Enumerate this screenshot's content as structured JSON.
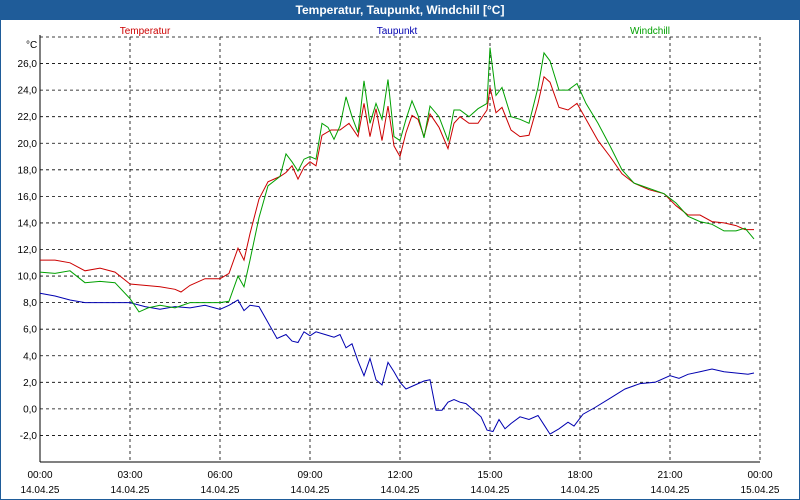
{
  "window": {
    "title": "Temperatur, Taupunkt, Windchill [°C]"
  },
  "chart_data": {
    "type": "line",
    "title": "Temperatur, Taupunkt, Windchill [°C]",
    "yunit": "°C",
    "ylim": [
      -4,
      28
    ],
    "yticks": [
      {
        "v": 26,
        "l": "26,0"
      },
      {
        "v": 24,
        "l": "24,0"
      },
      {
        "v": 22,
        "l": "22,0"
      },
      {
        "v": 20,
        "l": "20,0"
      },
      {
        "v": 18,
        "l": "18,0"
      },
      {
        "v": 16,
        "l": "16,0"
      },
      {
        "v": 14,
        "l": "14,0"
      },
      {
        "v": 12,
        "l": "12,0"
      },
      {
        "v": 10,
        "l": "10,0"
      },
      {
        "v": 8,
        "l": "8,0"
      },
      {
        "v": 6,
        "l": "6,0"
      },
      {
        "v": 4,
        "l": "4,0"
      },
      {
        "v": 2,
        "l": "2,0"
      },
      {
        "v": 0,
        "l": "0,0"
      },
      {
        "v": -2,
        "l": "-2,0"
      }
    ],
    "xlim": [
      0,
      24
    ],
    "xticks": [
      {
        "v": 0,
        "time": "00:00",
        "date": "14.04.25"
      },
      {
        "v": 3,
        "time": "03:00",
        "date": "14.04.25"
      },
      {
        "v": 6,
        "time": "06:00",
        "date": "14.04.25"
      },
      {
        "v": 9,
        "time": "09:00",
        "date": "14.04.25"
      },
      {
        "v": 12,
        "time": "12:00",
        "date": "14.04.25"
      },
      {
        "v": 15,
        "time": "15:00",
        "date": "14.04.25"
      },
      {
        "v": 18,
        "time": "18:00",
        "date": "14.04.25"
      },
      {
        "v": 21,
        "time": "21:00",
        "date": "14.04.25"
      },
      {
        "v": 24,
        "time": "00:00",
        "date": "15.04.25"
      }
    ],
    "grid": true,
    "legend_placement": "top",
    "series": [
      {
        "name": "Temperatur",
        "color": "#cc0000",
        "points": [
          [
            0,
            11.2
          ],
          [
            0.5,
            11.2
          ],
          [
            1,
            11.0
          ],
          [
            1.5,
            10.4
          ],
          [
            2,
            10.6
          ],
          [
            2.5,
            10.3
          ],
          [
            3,
            9.4
          ],
          [
            3.5,
            9.3
          ],
          [
            4,
            9.2
          ],
          [
            4.5,
            9.0
          ],
          [
            4.7,
            8.8
          ],
          [
            5,
            9.3
          ],
          [
            5.5,
            9.8
          ],
          [
            6,
            9.8
          ],
          [
            6.3,
            10.2
          ],
          [
            6.6,
            12.1
          ],
          [
            6.8,
            11.2
          ],
          [
            7,
            13.2
          ],
          [
            7.3,
            15.8
          ],
          [
            7.6,
            17.1
          ],
          [
            8,
            17.5
          ],
          [
            8.2,
            17.8
          ],
          [
            8.4,
            18.3
          ],
          [
            8.6,
            17.3
          ],
          [
            8.8,
            18.2
          ],
          [
            9.0,
            18.6
          ],
          [
            9.2,
            18.3
          ],
          [
            9.4,
            20.6
          ],
          [
            9.7,
            21.0
          ],
          [
            10.0,
            21.0
          ],
          [
            10.3,
            21.5
          ],
          [
            10.6,
            20.5
          ],
          [
            10.8,
            23.0
          ],
          [
            11.0,
            20.5
          ],
          [
            11.2,
            22.6
          ],
          [
            11.4,
            20.2
          ],
          [
            11.6,
            22.8
          ],
          [
            11.8,
            19.8
          ],
          [
            12.0,
            19.0
          ],
          [
            12.2,
            20.8
          ],
          [
            12.4,
            22.1
          ],
          [
            12.6,
            21.8
          ],
          [
            12.8,
            20.5
          ],
          [
            13.0,
            22.2
          ],
          [
            13.3,
            21.2
          ],
          [
            13.6,
            19.6
          ],
          [
            13.8,
            21.5
          ],
          [
            14.0,
            22.0
          ],
          [
            14.3,
            21.5
          ],
          [
            14.6,
            21.5
          ],
          [
            14.9,
            22.5
          ],
          [
            15.0,
            24.2
          ],
          [
            15.2,
            22.3
          ],
          [
            15.4,
            22.7
          ],
          [
            15.7,
            21.0
          ],
          [
            16.0,
            20.5
          ],
          [
            16.3,
            20.6
          ],
          [
            16.6,
            23.0
          ],
          [
            16.8,
            25.0
          ],
          [
            17.0,
            24.6
          ],
          [
            17.3,
            22.7
          ],
          [
            17.6,
            22.5
          ],
          [
            17.9,
            23.0
          ],
          [
            18.2,
            21.8
          ],
          [
            18.6,
            20.2
          ],
          [
            19.0,
            19.0
          ],
          [
            19.4,
            17.7
          ],
          [
            19.8,
            17.0
          ],
          [
            20.3,
            16.5
          ],
          [
            20.8,
            16.2
          ],
          [
            21.2,
            15.3
          ],
          [
            21.6,
            14.6
          ],
          [
            22.0,
            14.6
          ],
          [
            22.4,
            14.1
          ],
          [
            22.8,
            14.0
          ],
          [
            23.2,
            13.8
          ],
          [
            23.5,
            13.5
          ],
          [
            23.8,
            13.5
          ]
        ]
      },
      {
        "name": "Taupunkt",
        "color": "#0000b0",
        "points": [
          [
            0,
            8.7
          ],
          [
            0.5,
            8.5
          ],
          [
            1,
            8.2
          ],
          [
            1.5,
            8.0
          ],
          [
            2,
            8.0
          ],
          [
            2.5,
            8.0
          ],
          [
            3,
            8.0
          ],
          [
            3.5,
            7.7
          ],
          [
            4,
            7.5
          ],
          [
            4.5,
            7.7
          ],
          [
            5,
            7.6
          ],
          [
            5.5,
            7.8
          ],
          [
            6,
            7.5
          ],
          [
            6.3,
            7.8
          ],
          [
            6.6,
            8.2
          ],
          [
            6.8,
            7.4
          ],
          [
            7.0,
            7.8
          ],
          [
            7.3,
            7.7
          ],
          [
            7.6,
            6.5
          ],
          [
            7.9,
            5.3
          ],
          [
            8.2,
            5.6
          ],
          [
            8.4,
            5.1
          ],
          [
            8.6,
            5.0
          ],
          [
            8.8,
            5.8
          ],
          [
            9.0,
            5.5
          ],
          [
            9.2,
            5.8
          ],
          [
            9.5,
            5.6
          ],
          [
            9.8,
            5.4
          ],
          [
            10.0,
            5.6
          ],
          [
            10.2,
            4.6
          ],
          [
            10.4,
            4.9
          ],
          [
            10.6,
            3.6
          ],
          [
            10.8,
            2.5
          ],
          [
            11.0,
            3.8
          ],
          [
            11.2,
            2.2
          ],
          [
            11.4,
            1.8
          ],
          [
            11.6,
            3.5
          ],
          [
            11.8,
            2.8
          ],
          [
            12.0,
            2.0
          ],
          [
            12.2,
            1.5
          ],
          [
            12.5,
            1.8
          ],
          [
            12.8,
            2.1
          ],
          [
            13.0,
            2.2
          ],
          [
            13.2,
            -0.1
          ],
          [
            13.4,
            -0.1
          ],
          [
            13.6,
            0.5
          ],
          [
            13.8,
            0.7
          ],
          [
            14.0,
            0.5
          ],
          [
            14.2,
            0.4
          ],
          [
            14.5,
            -0.2
          ],
          [
            14.7,
            -0.6
          ],
          [
            14.9,
            -1.6
          ],
          [
            15.1,
            -1.7
          ],
          [
            15.3,
            -0.8
          ],
          [
            15.5,
            -1.5
          ],
          [
            15.7,
            -1.1
          ],
          [
            16.0,
            -0.6
          ],
          [
            16.3,
            -0.8
          ],
          [
            16.6,
            -0.5
          ],
          [
            16.8,
            -1.2
          ],
          [
            17.0,
            -1.9
          ],
          [
            17.3,
            -1.5
          ],
          [
            17.6,
            -1.0
          ],
          [
            17.8,
            -1.3
          ],
          [
            18.1,
            -0.4
          ],
          [
            18.5,
            0.1
          ],
          [
            19.0,
            0.8
          ],
          [
            19.5,
            1.5
          ],
          [
            20.0,
            1.9
          ],
          [
            20.5,
            2.0
          ],
          [
            21.0,
            2.5
          ],
          [
            21.3,
            2.3
          ],
          [
            21.6,
            2.6
          ],
          [
            22.0,
            2.8
          ],
          [
            22.4,
            3.0
          ],
          [
            22.8,
            2.8
          ],
          [
            23.2,
            2.7
          ],
          [
            23.6,
            2.6
          ],
          [
            23.8,
            2.7
          ]
        ]
      },
      {
        "name": "Windchill",
        "color": "#00a000",
        "points": [
          [
            0,
            10.3
          ],
          [
            0.5,
            10.2
          ],
          [
            1,
            10.4
          ],
          [
            1.5,
            9.5
          ],
          [
            2,
            9.6
          ],
          [
            2.5,
            9.5
          ],
          [
            3,
            8.3
          ],
          [
            3.3,
            7.3
          ],
          [
            3.6,
            7.6
          ],
          [
            4.0,
            7.8
          ],
          [
            4.5,
            7.6
          ],
          [
            5,
            8.0
          ],
          [
            5.5,
            8.0
          ],
          [
            6,
            8.0
          ],
          [
            6.3,
            8.1
          ],
          [
            6.6,
            10.0
          ],
          [
            6.8,
            9.2
          ],
          [
            7,
            11.2
          ],
          [
            7.3,
            14.4
          ],
          [
            7.6,
            16.8
          ],
          [
            8.0,
            17.5
          ],
          [
            8.2,
            19.2
          ],
          [
            8.4,
            18.6
          ],
          [
            8.6,
            17.9
          ],
          [
            8.8,
            18.8
          ],
          [
            9.0,
            19.0
          ],
          [
            9.2,
            18.8
          ],
          [
            9.4,
            21.5
          ],
          [
            9.6,
            21.2
          ],
          [
            9.8,
            20.3
          ],
          [
            10.0,
            21.3
          ],
          [
            10.2,
            23.5
          ],
          [
            10.4,
            22.0
          ],
          [
            10.6,
            20.8
          ],
          [
            10.8,
            24.7
          ],
          [
            11.0,
            21.5
          ],
          [
            11.2,
            23.0
          ],
          [
            11.4,
            21.8
          ],
          [
            11.6,
            24.8
          ],
          [
            11.8,
            20.5
          ],
          [
            12.0,
            20.2
          ],
          [
            12.2,
            21.8
          ],
          [
            12.4,
            23.2
          ],
          [
            12.6,
            22.1
          ],
          [
            12.8,
            20.4
          ],
          [
            13.0,
            22.8
          ],
          [
            13.3,
            22.0
          ],
          [
            13.6,
            20.2
          ],
          [
            13.8,
            22.5
          ],
          [
            14.0,
            22.5
          ],
          [
            14.3,
            22.0
          ],
          [
            14.6,
            22.6
          ],
          [
            14.9,
            23.0
          ],
          [
            15.0,
            27.2
          ],
          [
            15.2,
            23.6
          ],
          [
            15.4,
            24.2
          ],
          [
            15.7,
            22.0
          ],
          [
            16.0,
            21.8
          ],
          [
            16.3,
            21.5
          ],
          [
            16.6,
            24.2
          ],
          [
            16.8,
            26.8
          ],
          [
            17.0,
            26.2
          ],
          [
            17.3,
            24.0
          ],
          [
            17.6,
            24.0
          ],
          [
            17.9,
            24.5
          ],
          [
            18.2,
            23.0
          ],
          [
            18.6,
            21.5
          ],
          [
            19.0,
            19.8
          ],
          [
            19.4,
            18.0
          ],
          [
            19.8,
            17.0
          ],
          [
            20.3,
            16.6
          ],
          [
            20.8,
            16.2
          ],
          [
            21.2,
            15.5
          ],
          [
            21.6,
            14.5
          ],
          [
            22.0,
            14.1
          ],
          [
            22.4,
            13.9
          ],
          [
            22.8,
            13.4
          ],
          [
            23.2,
            13.4
          ],
          [
            23.5,
            13.6
          ],
          [
            23.8,
            12.8
          ]
        ]
      }
    ]
  }
}
